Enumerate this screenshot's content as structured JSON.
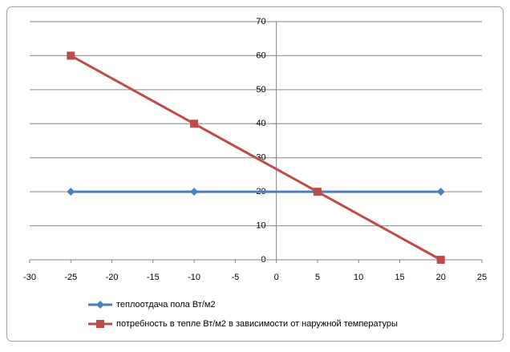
{
  "chart_data": {
    "type": "line",
    "x": [
      -25,
      -10,
      5,
      20
    ],
    "series": [
      {
        "name": "теплоотдача пола Вт/м2",
        "color": "#4a7ebb",
        "marker": "diamond",
        "values": [
          20,
          20,
          20,
          20
        ]
      },
      {
        "name": "потребность в тепле Вт/м2 в зависимости от наружной температуры",
        "color": "#be4b48",
        "marker": "square",
        "values": [
          60,
          40,
          20,
          0
        ]
      }
    ],
    "xlim": [
      -30,
      25
    ],
    "xticks": [
      -30,
      -25,
      -20,
      -15,
      -10,
      -5,
      0,
      5,
      10,
      15,
      20,
      25
    ],
    "ylim": [
      0,
      70
    ],
    "yticks": [
      0,
      10,
      20,
      30,
      40,
      50,
      60,
      70
    ],
    "grid": true,
    "legend": "bottom"
  }
}
